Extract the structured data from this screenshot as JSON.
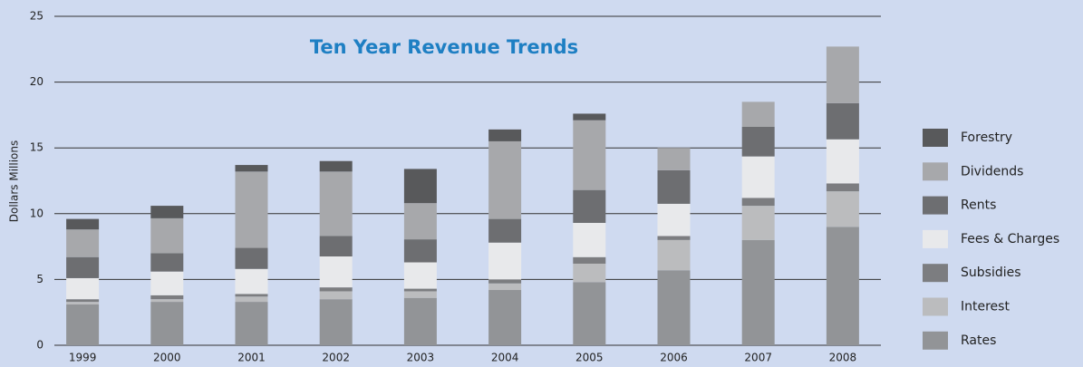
{
  "chart_data": {
    "type": "stacked_bar",
    "title": "Ten Year Revenue Trends",
    "y_label": "Dollars Millions",
    "categories": [
      "1999",
      "2000",
      "2001",
      "2002",
      "2003",
      "2004",
      "2005",
      "2006",
      "2007",
      "2008"
    ],
    "series": [
      {
        "name": "Rates",
        "color": "#929497",
        "values": [
          3.1,
          3.3,
          3.3,
          3.5,
          3.6,
          4.2,
          4.8,
          5.7,
          8.0,
          9.0
        ]
      },
      {
        "name": "Interest",
        "color": "#bbbcbe",
        "values": [
          0.2,
          0.2,
          0.4,
          0.6,
          0.5,
          0.5,
          1.4,
          2.3,
          2.6,
          2.7
        ]
      },
      {
        "name": "Subsidies",
        "color": "#7c7d80",
        "values": [
          0.2,
          0.3,
          0.2,
          0.3,
          0.2,
          0.3,
          0.5,
          0.3,
          0.6,
          0.6
        ]
      },
      {
        "name": "Fees & Charges",
        "color": "#e8e9eb",
        "values": [
          1.6,
          1.8,
          1.9,
          2.35,
          2.0,
          2.8,
          2.6,
          2.45,
          3.15,
          3.35
        ]
      },
      {
        "name": "Rents",
        "color": "#6d6e71",
        "values": [
          1.6,
          1.4,
          1.6,
          1.55,
          1.75,
          1.8,
          2.5,
          2.55,
          2.25,
          2.75
        ]
      },
      {
        "name": "Dividends",
        "color": "#a7a8ab",
        "values": [
          2.1,
          2.65,
          5.8,
          4.9,
          2.75,
          5.9,
          5.3,
          1.7,
          1.9,
          4.3
        ]
      },
      {
        "name": "Forestry",
        "color": "#58595b",
        "values": [
          0.8,
          0.95,
          0.5,
          0.8,
          2.6,
          0.9,
          0.5,
          0,
          0,
          0
        ]
      }
    ],
    "ylim": [
      0,
      25
    ],
    "yticks": [
      0,
      5,
      10,
      15,
      20,
      25
    ],
    "grid": true,
    "legend": "right"
  }
}
